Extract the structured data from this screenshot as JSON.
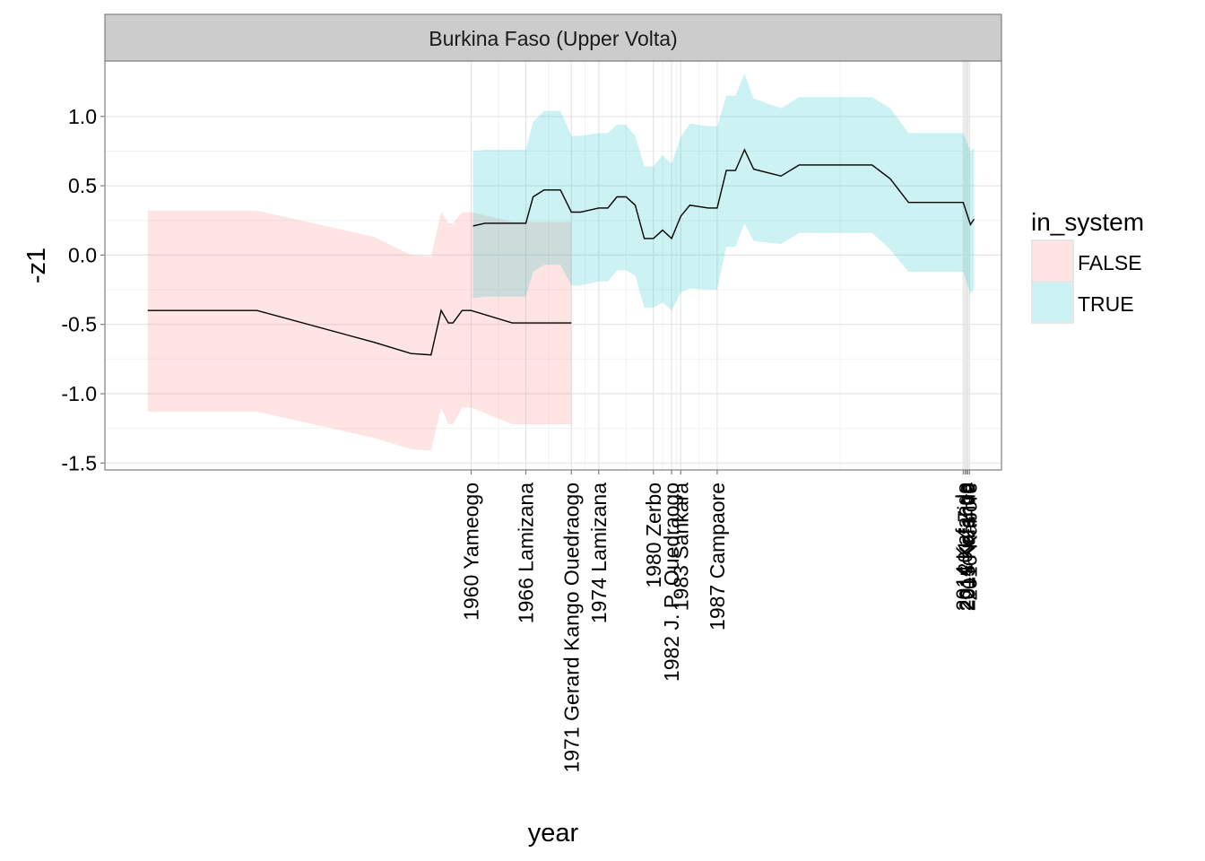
{
  "chart_data": {
    "type": "area",
    "title": "",
    "facet_label": "Burkina Faso (Upper Volta)",
    "xlabel": "year",
    "ylabel": "-z1",
    "ylim": [
      -1.55,
      1.4
    ],
    "xlim": [
      1919.8,
      2018.2
    ],
    "y_ticks": [
      {
        "value": 1.0,
        "label": "1.0"
      },
      {
        "value": 0.5,
        "label": "0.5"
      },
      {
        "value": 0.0,
        "label": "0.0"
      },
      {
        "value": -0.5,
        "label": "-0.5"
      },
      {
        "value": -1.0,
        "label": "-1.0"
      },
      {
        "value": -1.5,
        "label": "-1.5"
      }
    ],
    "x_ticks": [
      {
        "value": 1960,
        "label": "1960 Yameogo"
      },
      {
        "value": 1966,
        "label": "1966 Lamizana"
      },
      {
        "value": 1971,
        "label": "1971 Gerard Kango Ouedraogo"
      },
      {
        "value": 1974,
        "label": "1974 Lamizana"
      },
      {
        "value": 1980,
        "label": "1980 Zerbo"
      },
      {
        "value": 1982,
        "label": "1982 J. P. Ouedraogo"
      },
      {
        "value": 1983,
        "label": "1983 Sankara"
      },
      {
        "value": 1987,
        "label": "1987 Campaore"
      },
      {
        "value": 2014,
        "label": "2014 Kafando"
      },
      {
        "value": 2014.2,
        "label": "2014 Zida"
      },
      {
        "value": 2014.35,
        "label": "2014 Kafando"
      },
      {
        "value": 2014.5,
        "label": "2015 Kafando"
      },
      {
        "value": 2014.7,
        "label": "2016 Kabore"
      }
    ],
    "grid": true,
    "legend": {
      "title": "in_system",
      "position": "right",
      "entries": [
        {
          "label": "FALSE",
          "color": "#F8766D"
        },
        {
          "label": "TRUE",
          "color": "#00BFC4"
        }
      ]
    },
    "series": [
      {
        "name": "FALSE",
        "color": "#F8766D",
        "x": [
          1924.5,
          1936.5,
          1949.4,
          1953.4,
          1955.6,
          1956.7,
          1957.5,
          1958.0,
          1959.0,
          1960.0,
          1964.5,
          1966.0,
          1967.0,
          1969.0,
          1970.0,
          1971.0
        ],
        "y": [
          -0.4,
          -0.4,
          -0.63,
          -0.71,
          -0.72,
          -0.4,
          -0.49,
          -0.49,
          -0.4,
          -0.4,
          -0.49,
          -0.49,
          -0.49,
          -0.49,
          -0.49,
          -0.49
        ],
        "lower": [
          -1.13,
          -1.13,
          -1.32,
          -1.4,
          -1.41,
          -1.1,
          -1.22,
          -1.22,
          -1.1,
          -1.1,
          -1.22,
          -1.22,
          -1.22,
          -1.22,
          -1.22,
          -1.22
        ],
        "upper": [
          0.32,
          0.32,
          0.13,
          0.0,
          -0.01,
          0.31,
          0.23,
          0.23,
          0.31,
          0.31,
          0.24,
          0.24,
          0.24,
          0.24,
          0.24,
          0.24
        ]
      },
      {
        "name": "TRUE",
        "color": "#00BFC4",
        "x": [
          1960.2,
          1961.5,
          1966.0,
          1966.8,
          1968.0,
          1969.8,
          1971.0,
          1972.0,
          1974.0,
          1975.0,
          1976.0,
          1977.0,
          1978.0,
          1979.0,
          1980.0,
          1981.0,
          1982.0,
          1983.0,
          1984.0,
          1986.0,
          1987.0,
          1988.0,
          1989.0,
          1990.0,
          1991.0,
          1994.0,
          1996.0,
          1997.0,
          1998.0,
          2004.0,
          2006.0,
          2008.0,
          2011.0,
          2012.0,
          2012.5,
          2014.0,
          2014.8,
          2015.2
        ],
        "y": [
          0.21,
          0.23,
          0.23,
          0.42,
          0.47,
          0.47,
          0.31,
          0.31,
          0.34,
          0.34,
          0.42,
          0.42,
          0.36,
          0.12,
          0.12,
          0.18,
          0.12,
          0.28,
          0.36,
          0.34,
          0.34,
          0.61,
          0.61,
          0.76,
          0.62,
          0.57,
          0.65,
          0.65,
          0.65,
          0.65,
          0.55,
          0.38,
          0.38,
          0.38,
          0.38,
          0.38,
          0.22,
          0.26
        ],
        "lower": [
          -0.31,
          -0.3,
          -0.3,
          -0.12,
          -0.07,
          -0.07,
          -0.22,
          -0.22,
          -0.19,
          -0.19,
          -0.11,
          -0.11,
          -0.15,
          -0.38,
          -0.38,
          -0.34,
          -0.4,
          -0.27,
          -0.24,
          -0.25,
          -0.25,
          0.06,
          0.06,
          0.23,
          0.1,
          0.08,
          0.16,
          0.16,
          0.16,
          0.16,
          0.04,
          -0.12,
          -0.12,
          -0.12,
          -0.12,
          -0.12,
          -0.28,
          -0.24
        ],
        "upper": [
          0.75,
          0.76,
          0.76,
          0.96,
          1.04,
          1.04,
          0.86,
          0.86,
          0.88,
          0.88,
          0.94,
          0.94,
          0.86,
          0.64,
          0.64,
          0.72,
          0.66,
          0.85,
          0.95,
          0.93,
          0.93,
          1.15,
          1.15,
          1.31,
          1.13,
          1.06,
          1.14,
          1.14,
          1.14,
          1.14,
          1.06,
          0.88,
          0.88,
          0.88,
          0.88,
          0.88,
          0.75,
          0.77
        ]
      }
    ]
  }
}
